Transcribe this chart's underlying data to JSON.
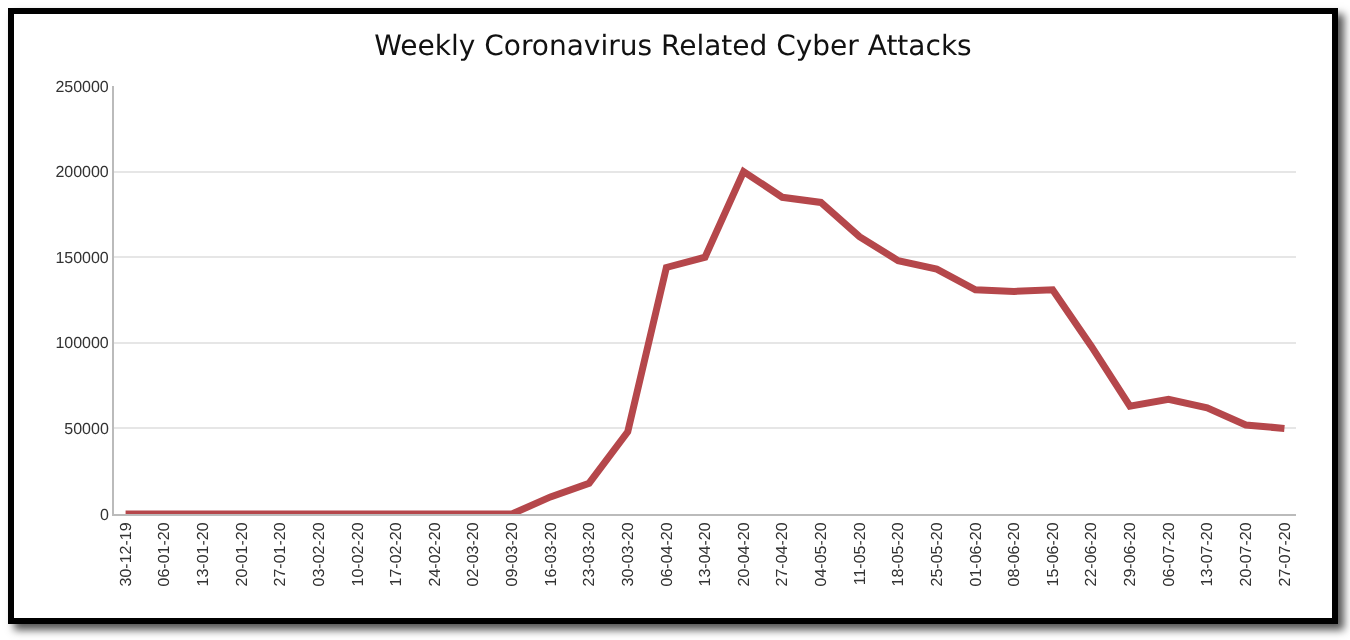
{
  "chart_data": {
    "type": "line",
    "title": "Weekly Coronavirus Related Cyber Attacks",
    "categories": [
      "30-12-19",
      "06-01-20",
      "13-01-20",
      "20-01-20",
      "27-01-20",
      "03-02-20",
      "10-02-20",
      "17-02-20",
      "24-02-20",
      "02-03-20",
      "09-03-20",
      "16-03-20",
      "23-03-20",
      "30-03-20",
      "06-04-20",
      "13-04-20",
      "20-04-20",
      "27-04-20",
      "04-05-20",
      "11-05-20",
      "18-05-20",
      "25-05-20",
      "01-06-20",
      "08-06-20",
      "15-06-20",
      "22-06-20",
      "29-06-20",
      "06-07-20",
      "13-07-20",
      "20-07-20",
      "27-07-20"
    ],
    "series": [
      {
        "color": "#b5474b",
        "values": [
          0,
          0,
          0,
          0,
          0,
          0,
          0,
          0,
          0,
          0,
          0,
          10000,
          18000,
          48000,
          144000,
          150000,
          200000,
          185000,
          182000,
          162000,
          148000,
          143000,
          131000,
          130000,
          131000,
          98000,
          63000,
          67000,
          62000,
          52000,
          50000
        ]
      }
    ],
    "ylim": [
      0,
      250000
    ],
    "yticks": [
      0,
      50000,
      100000,
      150000,
      200000,
      250000
    ],
    "grid": "y",
    "marker": "none",
    "line_style": "solid"
  }
}
